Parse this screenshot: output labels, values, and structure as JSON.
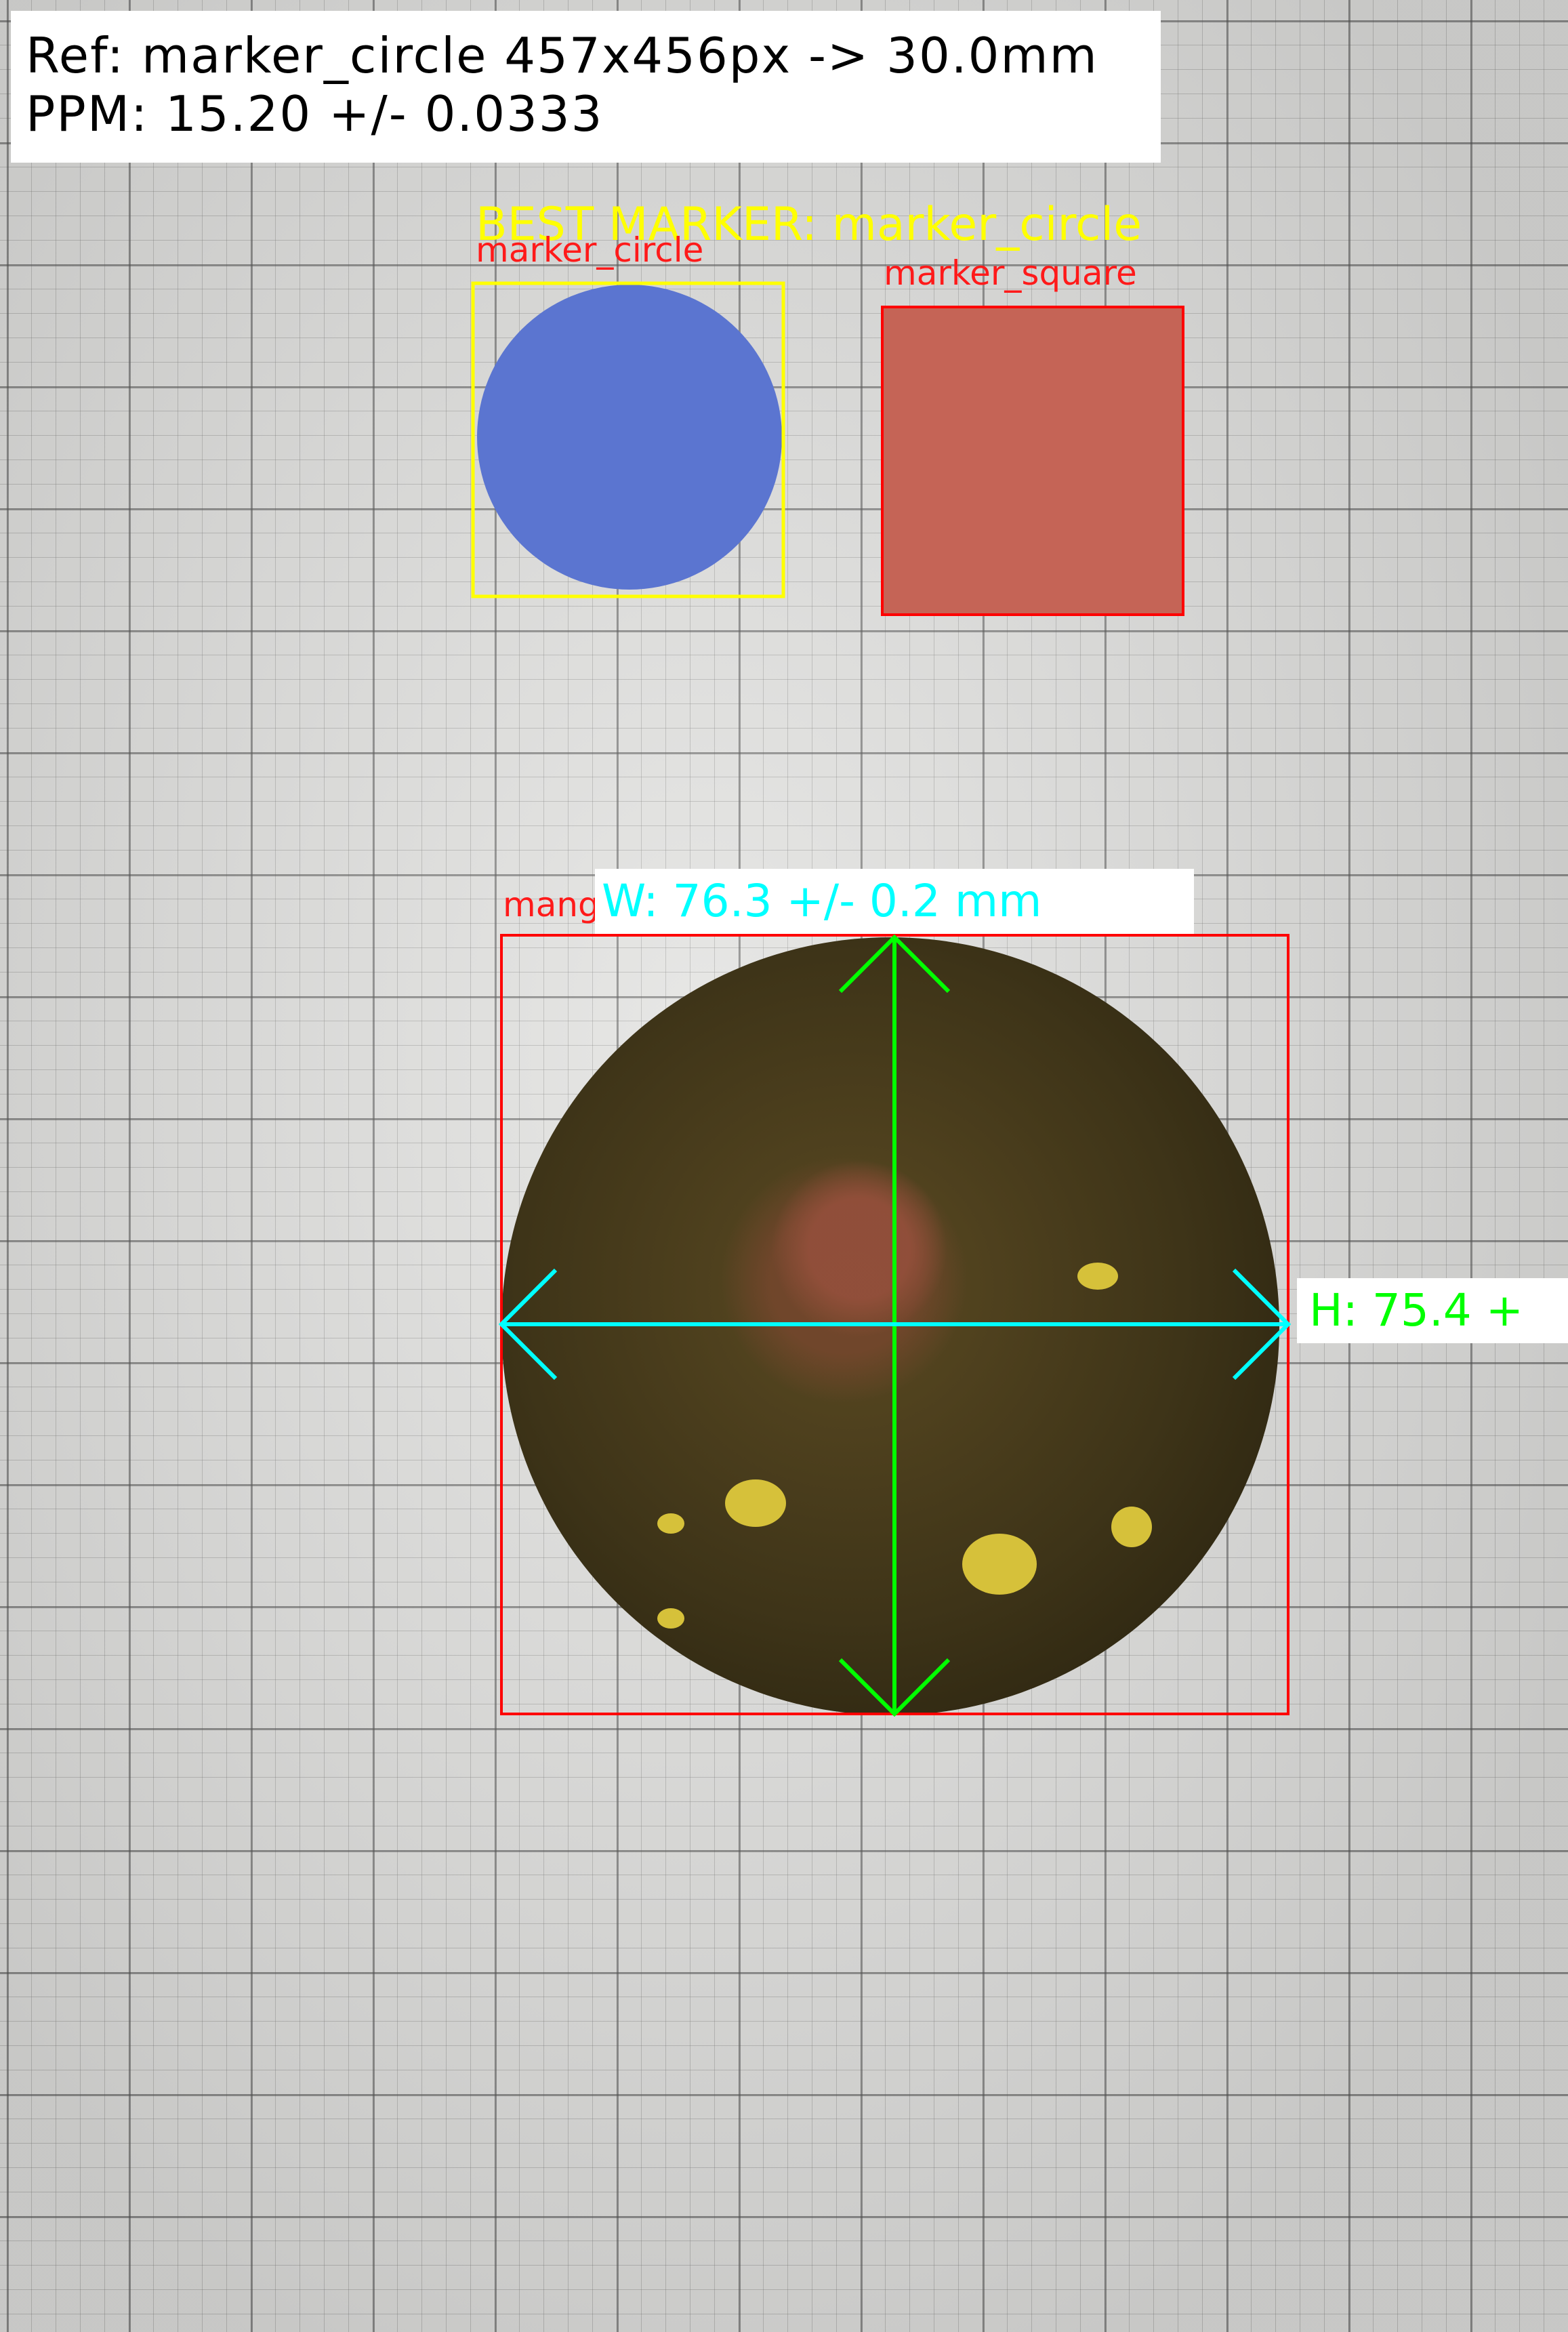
{
  "reference": {
    "line1": "Ref: marker_circle 457x456px -> 30.0mm",
    "line2": "PPM: 15.20 +/- 0.0333"
  },
  "best_marker_label": "BEST MARKER: marker_circle",
  "markers": [
    {
      "name": "marker_circle",
      "box_color": "#ffff00",
      "fill": "#5b75d0"
    },
    {
      "name": "marker_square",
      "box_color": "#ff0000",
      "fill": "#c56456"
    }
  ],
  "object": {
    "label_partial": "mang",
    "box_color": "#ff0000",
    "width_label": "W: 76.3 +/- 0.2 mm",
    "height_label": "H: 75.4 +",
    "width_arrow_color": "#00ffff",
    "height_arrow_color": "#00ff00"
  }
}
